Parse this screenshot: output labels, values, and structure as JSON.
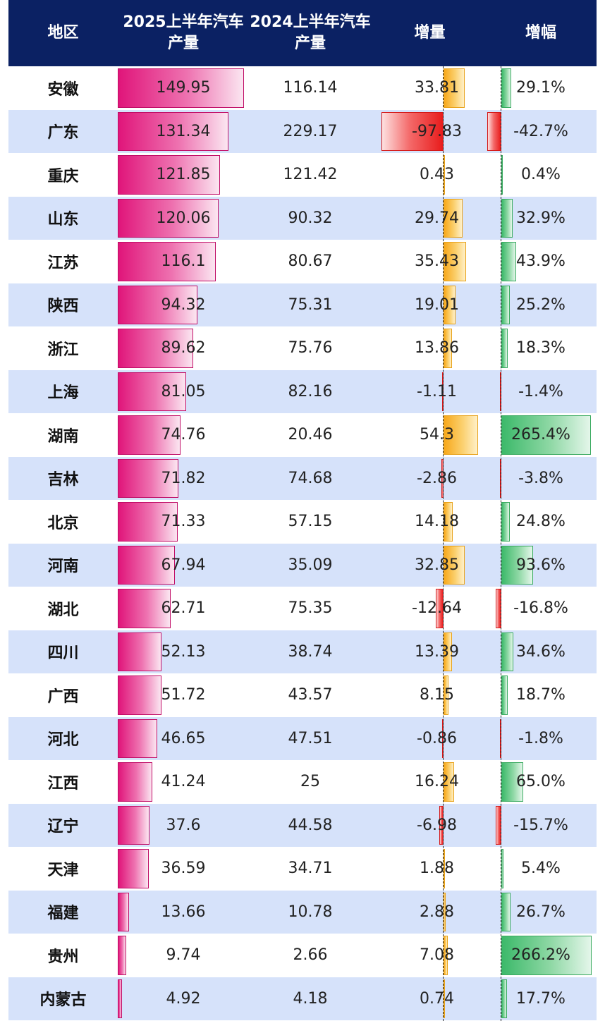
{
  "header": {
    "region": "地区",
    "prod2025": "2025上半年汽车\n产量",
    "prod2024": "2024上半年汽车\n产量",
    "increase": "增量",
    "growth": "增幅"
  },
  "colors": {
    "header_bg": "#0b2163",
    "row_alt": "#d6e2fa",
    "production_bar": "#e0157a",
    "increase_positive": "#f7a81b",
    "negative": "#e81c1c",
    "growth_positive": "#3cb96a"
  },
  "chart_data": {
    "type": "table",
    "columns": [
      "地区",
      "2025上半年汽车产量",
      "2024上半年汽车产量",
      "增量",
      "增幅"
    ],
    "rows": [
      {
        "region": "安徽",
        "prod2025": "149.95",
        "prod2024": "116.14",
        "increase": "33.81",
        "growth": "29.1%"
      },
      {
        "region": "广东",
        "prod2025": "131.34",
        "prod2024": "229.17",
        "increase": "-97.83",
        "growth": "-42.7%"
      },
      {
        "region": "重庆",
        "prod2025": "121.85",
        "prod2024": "121.42",
        "increase": "0.43",
        "growth": "0.4%"
      },
      {
        "region": "山东",
        "prod2025": "120.06",
        "prod2024": "90.32",
        "increase": "29.74",
        "growth": "32.9%"
      },
      {
        "region": "江苏",
        "prod2025": "116.1",
        "prod2024": "80.67",
        "increase": "35.43",
        "growth": "43.9%"
      },
      {
        "region": "陕西",
        "prod2025": "94.32",
        "prod2024": "75.31",
        "increase": "19.01",
        "growth": "25.2%"
      },
      {
        "region": "浙江",
        "prod2025": "89.62",
        "prod2024": "75.76",
        "increase": "13.86",
        "growth": "18.3%"
      },
      {
        "region": "上海",
        "prod2025": "81.05",
        "prod2024": "82.16",
        "increase": "-1.11",
        "growth": "-1.4%"
      },
      {
        "region": "湖南",
        "prod2025": "74.76",
        "prod2024": "20.46",
        "increase": "54.3",
        "growth": "265.4%"
      },
      {
        "region": "吉林",
        "prod2025": "71.82",
        "prod2024": "74.68",
        "increase": "-2.86",
        "growth": "-3.8%"
      },
      {
        "region": "北京",
        "prod2025": "71.33",
        "prod2024": "57.15",
        "increase": "14.18",
        "growth": "24.8%"
      },
      {
        "region": "河南",
        "prod2025": "67.94",
        "prod2024": "35.09",
        "increase": "32.85",
        "growth": "93.6%"
      },
      {
        "region": "湖北",
        "prod2025": "62.71",
        "prod2024": "75.35",
        "increase": "-12.64",
        "growth": "-16.8%"
      },
      {
        "region": "四川",
        "prod2025": "52.13",
        "prod2024": "38.74",
        "increase": "13.39",
        "growth": "34.6%"
      },
      {
        "region": "广西",
        "prod2025": "51.72",
        "prod2024": "43.57",
        "increase": "8.15",
        "growth": "18.7%"
      },
      {
        "region": "河北",
        "prod2025": "46.65",
        "prod2024": "47.51",
        "increase": "-0.86",
        "growth": "-1.8%"
      },
      {
        "region": "江西",
        "prod2025": "41.24",
        "prod2024": "25",
        "increase": "16.24",
        "growth": "65.0%"
      },
      {
        "region": "辽宁",
        "prod2025": "37.6",
        "prod2024": "44.58",
        "increase": "-6.98",
        "growth": "-15.7%"
      },
      {
        "region": "天津",
        "prod2025": "36.59",
        "prod2024": "34.71",
        "increase": "1.88",
        "growth": "5.4%"
      },
      {
        "region": "福建",
        "prod2025": "13.66",
        "prod2024": "10.78",
        "increase": "2.88",
        "growth": "26.7%"
      },
      {
        "region": "贵州",
        "prod2025": "9.74",
        "prod2024": "2.66",
        "increase": "7.08",
        "growth": "266.2%"
      },
      {
        "region": "内蒙古",
        "prod2025": "4.92",
        "prod2024": "4.18",
        "increase": "0.74",
        "growth": "17.7%"
      }
    ]
  }
}
